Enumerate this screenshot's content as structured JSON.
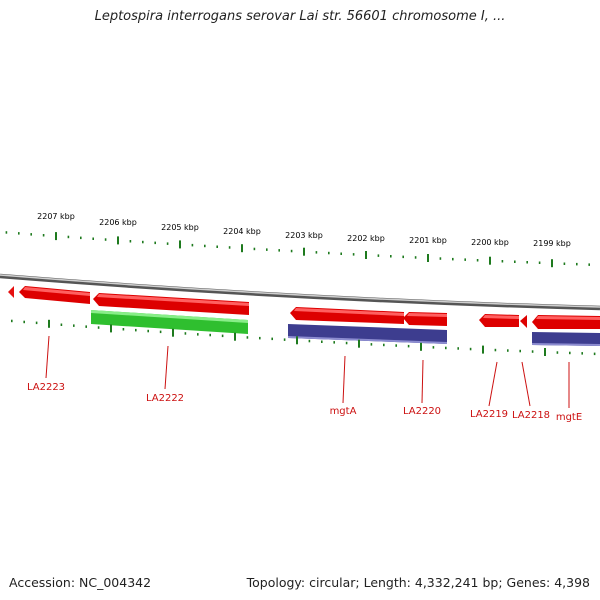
{
  "title": "Leptospira interrogans serovar Lai str. 56601 chromosome I, ...",
  "footer": {
    "accession": "Accession: NC_004342",
    "summary": "Topology: circular; Length: 4,332,241 bp; Genes: 4,398"
  },
  "colors": {
    "backbone": "#8c8c8c",
    "tick": "#1e7a1e",
    "gene_label": "#cc1111",
    "kbp_label": "#111111",
    "forward_red": "#ee1111",
    "green_feature": "#33cc33",
    "purple_feature": "#4a4a9a"
  },
  "kbp_labels": [
    "2207 kbp",
    "2206 kbp",
    "2205 kbp",
    "2204 kbp",
    "2203 kbp",
    "2202 kbp",
    "2201 kbp",
    "2200 kbp",
    "2199 kbp"
  ],
  "gene_labels": [
    "LA2223",
    "LA2222",
    "mgtA",
    "LA2220",
    "LA2219",
    "LA2218",
    "mgtE"
  ]
}
